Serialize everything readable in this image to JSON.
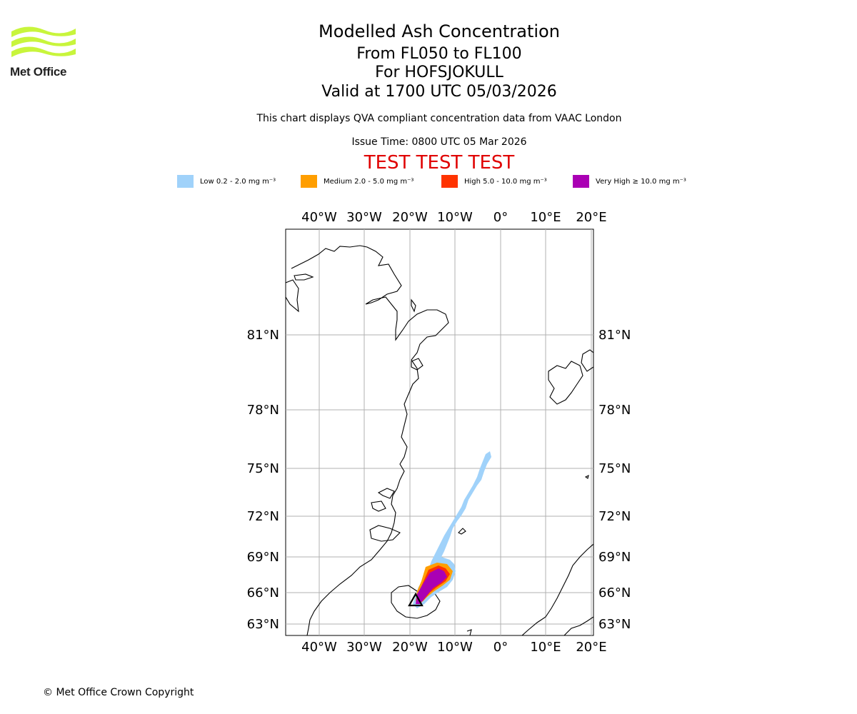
{
  "logo": {
    "icon": "met-office-wave-logo",
    "text": "Met Office",
    "color": "#c8f53c"
  },
  "header": {
    "title": "Modelled Ash Concentration",
    "levels": "From FL050 to FL100",
    "volcano": "For HOFSJOKULL",
    "valid": "Valid at 1700 UTC 05/03/2026",
    "compliance": "This chart displays QVA compliant concentration data from VAAC London",
    "issue_time": "Issue Time: 0800 UTC 05 Mar 2026",
    "test_banner": "TEST TEST TEST",
    "test_color": "#e00000"
  },
  "legend": [
    {
      "label": "Low 0.2 - 2.0 mg m⁻³",
      "color": "#a0d2fa"
    },
    {
      "label": "Medium 2.0 - 5.0 mg m⁻³",
      "color": "#ff9e00"
    },
    {
      "label": "High 5.0 - 10.0 mg m⁻³",
      "color": "#ff3300"
    },
    {
      "label": "Very High ≥ 10.0 mg m⁻³",
      "color": "#aa00b4"
    }
  ],
  "map": {
    "lon_labels": [
      "40°W",
      "30°W",
      "20°W",
      "10°W",
      "0°",
      "10°E",
      "20°E"
    ],
    "lat_labels": [
      "81°N",
      "78°N",
      "75°N",
      "72°N",
      "69°N",
      "66°N",
      "63°N"
    ],
    "volcano_marker": "triangle-volcano-icon"
  },
  "footer": {
    "copyright": "© Met Office Crown Copyright"
  }
}
